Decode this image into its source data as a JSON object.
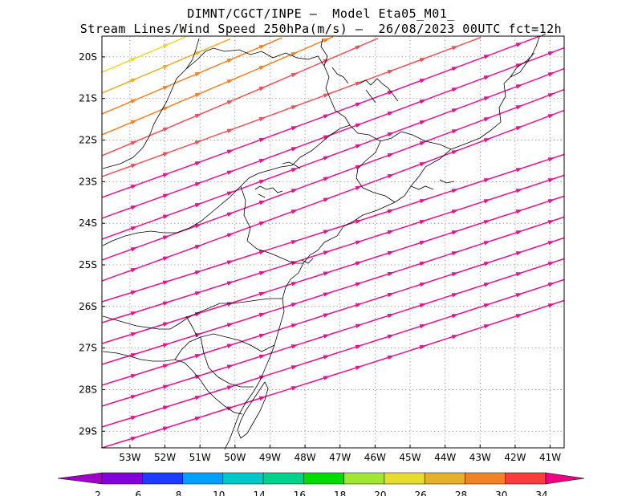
{
  "header": {
    "line1": "DIMNT/CGCT/INPE –  Model Eta05_M01_",
    "line2": "Stream Lines/Wind Speed 250hPa(m/s) –  26/08/2023 00UTC fct=12h"
  },
  "map": {
    "lat_labels": [
      "20S",
      "21S",
      "22S",
      "23S",
      "24S",
      "25S",
      "26S",
      "27S",
      "28S",
      "29S"
    ],
    "lon_labels": [
      "53W",
      "52W",
      "51W",
      "50W",
      "49W",
      "48W",
      "47W",
      "46W",
      "45W",
      "44W",
      "43W",
      "42W",
      "41W"
    ],
    "lat_range": [
      -29.4,
      -19.5
    ],
    "lon_range": [
      -53.8,
      -40.6
    ],
    "gridlines": true,
    "grid_style": "dotted"
  },
  "colorbar": {
    "labels": [
      "2",
      "6",
      "8",
      "10",
      "14",
      "16",
      "18",
      "20",
      "26",
      "28",
      "30",
      "34"
    ],
    "colors": [
      "#a000c8",
      "#8200dc",
      "#1e3cff",
      "#00a0ff",
      "#00c8c8",
      "#00d28c",
      "#00dc00",
      "#a0e632",
      "#e6dc32",
      "#e6af2d",
      "#f08228",
      "#fa3c3c",
      "#f00082"
    ]
  },
  "streamlines": {
    "palette": {
      "fast": "#e6148c",
      "strong": "#f0505a",
      "mid": "#f08228",
      "warm": "#e6af2d",
      "light": "#e6dc32"
    }
  }
}
